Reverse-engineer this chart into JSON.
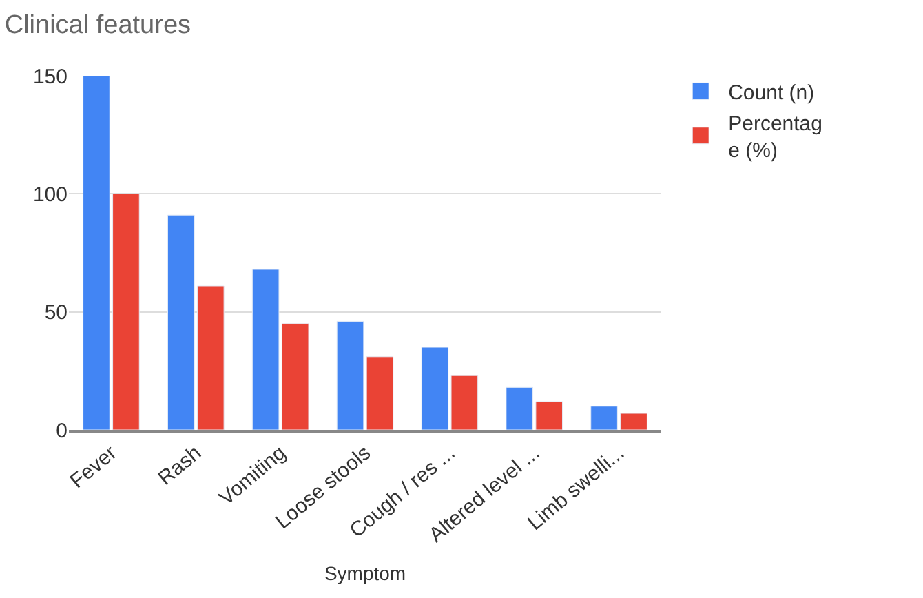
{
  "chart_data": {
    "type": "bar",
    "title": "Clinical features",
    "xlabel": "Symptom",
    "categories": [
      "Fever",
      "Rash",
      "Vomiting",
      "Loose stools",
      "Cough / res ...",
      "Altered level ...",
      "Limb swelli..."
    ],
    "series": [
      {
        "name": "Count (n)",
        "color": "#4285f4",
        "values": [
          150,
          91,
          68,
          46,
          35,
          18,
          10
        ]
      },
      {
        "name": "Percentage (%)",
        "color": "#ea4335",
        "values": [
          100,
          61,
          45,
          31,
          23,
          12,
          7
        ]
      }
    ],
    "ylim": [
      0,
      150
    ],
    "yticks": [
      0,
      50,
      100,
      150
    ],
    "grid": "y",
    "legend": "top right"
  }
}
